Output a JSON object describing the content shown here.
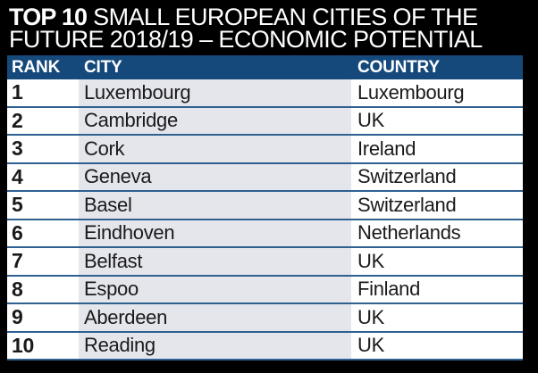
{
  "title": {
    "line1_bold": "TOP 10",
    "line1_rest": " SMALL EUROPEAN CITIES OF THE",
    "line2": "FUTURE 2018/19 – ECONOMIC POTENTIAL"
  },
  "table": {
    "columns": [
      "RANK",
      "CITY",
      "COUNTRY"
    ],
    "rows": [
      {
        "rank": "1",
        "city": "Luxembourg",
        "country": "Luxembourg"
      },
      {
        "rank": "2",
        "city": "Cambridge",
        "country": "UK"
      },
      {
        "rank": "3",
        "city": "Cork",
        "country": "Ireland"
      },
      {
        "rank": "4",
        "city": "Geneva",
        "country": "Switzerland"
      },
      {
        "rank": "5",
        "city": "Basel",
        "country": "Switzerland"
      },
      {
        "rank": "6",
        "city": "Eindhoven",
        "country": "Netherlands"
      },
      {
        "rank": "7",
        "city": "Belfast",
        "country": "UK"
      },
      {
        "rank": "8",
        "city": "Espoo",
        "country": "Finland"
      },
      {
        "rank": "9",
        "city": "Aberdeen",
        "country": "UK"
      },
      {
        "rank": "10",
        "city": "Reading",
        "country": "UK"
      }
    ]
  },
  "chart_data": {
    "type": "table",
    "title": "TOP 10 SMALL EUROPEAN CITIES OF THE FUTURE 2018/19 – ECONOMIC POTENTIAL",
    "columns": [
      "RANK",
      "CITY",
      "COUNTRY"
    ],
    "rows": [
      [
        1,
        "Luxembourg",
        "Luxembourg"
      ],
      [
        2,
        "Cambridge",
        "UK"
      ],
      [
        3,
        "Cork",
        "Ireland"
      ],
      [
        4,
        "Geneva",
        "Switzerland"
      ],
      [
        5,
        "Basel",
        "Switzerland"
      ],
      [
        6,
        "Eindhoven",
        "Netherlands"
      ],
      [
        7,
        "Belfast",
        "UK"
      ],
      [
        8,
        "Espoo",
        "Finland"
      ],
      [
        9,
        "Aberdeen",
        "UK"
      ],
      [
        10,
        "Reading",
        "UK"
      ]
    ]
  },
  "colors": {
    "background": "#000000",
    "header_bar": "#16497b",
    "row_separator": "#2e6090",
    "city_column_bg": "#e5e6ec",
    "title_text": "#ffffff",
    "cell_text": "#1a1a1a"
  }
}
